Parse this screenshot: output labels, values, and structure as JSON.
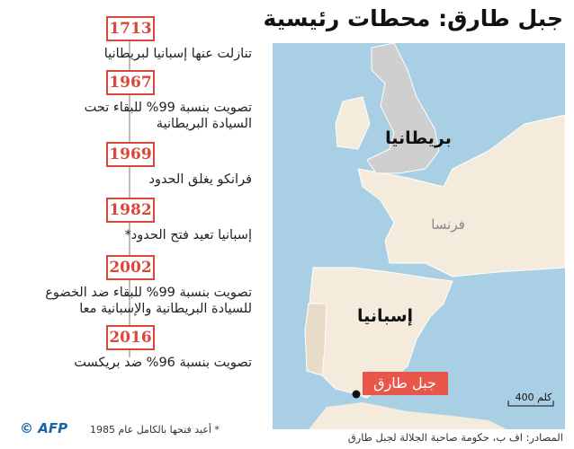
{
  "header": {
    "title": "جبل طارق: محطات رئيسية"
  },
  "timeline": [
    {
      "year": "1713",
      "lines": [
        "تنازلت عنها إسبانيا لبريطانيا"
      ]
    },
    {
      "year": "1967",
      "lines": [
        "تصويت بنسبة 99% للبقاء تحت",
        "السيادة البريطانية"
      ]
    },
    {
      "year": "1969",
      "lines": [
        "فرانكو يغلق الحدود"
      ]
    },
    {
      "year": "1982",
      "lines": [
        "إسبانيا تعيد فتح الحدود*"
      ]
    },
    {
      "year": "2002",
      "lines": [
        "تصويت بنسبة 99% للبقاء ضد الخضوع",
        "للسيادة البريطانية والإسبانية معا"
      ]
    },
    {
      "year": "2016",
      "lines": [
        "تصويت بنسبة 96% ضد بريكست"
      ]
    }
  ],
  "map": {
    "labels": {
      "britain": "بريطانيا",
      "france": "فرنسا",
      "spain": "إسبانيا",
      "gibraltar": "جبل طارق"
    },
    "scale": "400 كلم"
  },
  "footer": {
    "note": "* أعيد فتحها بالكامل عام 1985",
    "source": "المصادر: اف ب، حكومة صاحبة الجلالة لجبل طارق",
    "logo": "AFP",
    "copyright": "©"
  }
}
